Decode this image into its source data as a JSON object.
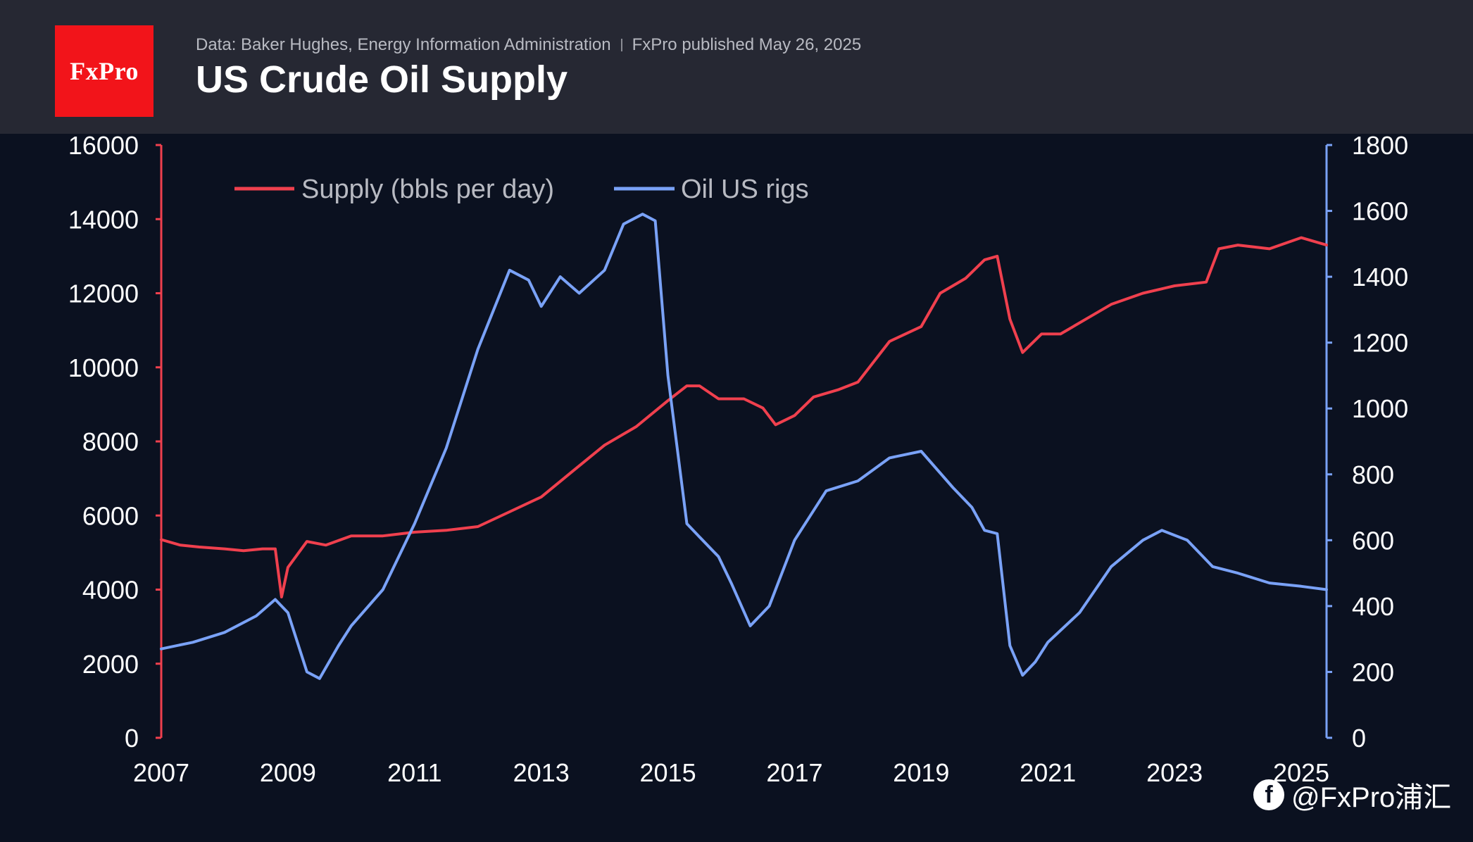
{
  "header": {
    "logo_text": "FxPro",
    "source": "Data: Baker Hughes, Energy Information Administration",
    "published": "FxPro published May 26, 2025",
    "title": "US Crude Oil Supply"
  },
  "watermark": {
    "icon": "facebook-icon",
    "text": "@FxPro浦汇"
  },
  "colors": {
    "supply": "#f0404e",
    "rigs": "#7aa2f7",
    "background": "#0b1120",
    "header": "#262833",
    "logo": "#f2141a"
  },
  "chart_data": {
    "type": "line",
    "title": "US Crude Oil Supply",
    "xlabel": "",
    "ylabel": "",
    "y2label": "",
    "grid": false,
    "legend_position": "top-left",
    "x_ticks": [
      "2007",
      "2009",
      "2011",
      "2013",
      "2015",
      "2017",
      "2019",
      "2021",
      "2023",
      "2025"
    ],
    "y_ticks": [
      "0",
      "2000",
      "4000",
      "6000",
      "8000",
      "10000",
      "12000",
      "14000",
      "16000"
    ],
    "y2_ticks": [
      "0",
      "200",
      "400",
      "600",
      "800",
      "1000",
      "1200",
      "1400",
      "1600",
      "1800"
    ],
    "ylim": [
      0,
      16000
    ],
    "y2lim": [
      0,
      1800
    ],
    "xlim": [
      2007,
      2025.4
    ],
    "series": [
      {
        "name": "Supply (bbls per day)",
        "axis": "left",
        "color": "#f0404e",
        "points": [
          [
            2007,
            5350
          ],
          [
            2007.3,
            5200
          ],
          [
            2007.6,
            5150
          ],
          [
            2008,
            5100
          ],
          [
            2008.3,
            5050
          ],
          [
            2008.6,
            5100
          ],
          [
            2008.8,
            5100
          ],
          [
            2008.9,
            3800
          ],
          [
            2009.0,
            4600
          ],
          [
            2009.3,
            5300
          ],
          [
            2009.6,
            5200
          ],
          [
            2010,
            5450
          ],
          [
            2010.5,
            5450
          ],
          [
            2011,
            5550
          ],
          [
            2011.5,
            5600
          ],
          [
            2012,
            5700
          ],
          [
            2012.5,
            6100
          ],
          [
            2013,
            6500
          ],
          [
            2013.5,
            7200
          ],
          [
            2014,
            7900
          ],
          [
            2014.5,
            8400
          ],
          [
            2015,
            9100
          ],
          [
            2015.3,
            9500
          ],
          [
            2015.5,
            9500
          ],
          [
            2015.8,
            9150
          ],
          [
            2016.2,
            9150
          ],
          [
            2016.5,
            8900
          ],
          [
            2016.7,
            8450
          ],
          [
            2017,
            8700
          ],
          [
            2017.3,
            9200
          ],
          [
            2017.7,
            9400
          ],
          [
            2018,
            9600
          ],
          [
            2018.5,
            10700
          ],
          [
            2019,
            11100
          ],
          [
            2019.3,
            12000
          ],
          [
            2019.7,
            12400
          ],
          [
            2020,
            12900
          ],
          [
            2020.2,
            13000
          ],
          [
            2020.4,
            11300
          ],
          [
            2020.6,
            10400
          ],
          [
            2020.9,
            10900
          ],
          [
            2021.2,
            10900
          ],
          [
            2021.6,
            11300
          ],
          [
            2022,
            11700
          ],
          [
            2022.5,
            12000
          ],
          [
            2023,
            12200
          ],
          [
            2023.5,
            12300
          ],
          [
            2023.7,
            13200
          ],
          [
            2024,
            13300
          ],
          [
            2024.5,
            13200
          ],
          [
            2025,
            13500
          ],
          [
            2025.2,
            13400
          ],
          [
            2025.4,
            13300
          ]
        ]
      },
      {
        "name": "Oil US rigs",
        "axis": "right",
        "color": "#7aa2f7",
        "points": [
          [
            2007,
            270
          ],
          [
            2007.5,
            290
          ],
          [
            2008,
            320
          ],
          [
            2008.5,
            370
          ],
          [
            2008.8,
            420
          ],
          [
            2009,
            380
          ],
          [
            2009.3,
            200
          ],
          [
            2009.5,
            180
          ],
          [
            2009.8,
            280
          ],
          [
            2010,
            340
          ],
          [
            2010.5,
            450
          ],
          [
            2011,
            650
          ],
          [
            2011.5,
            880
          ],
          [
            2012,
            1180
          ],
          [
            2012.5,
            1420
          ],
          [
            2012.8,
            1390
          ],
          [
            2013,
            1310
          ],
          [
            2013.3,
            1400
          ],
          [
            2013.6,
            1350
          ],
          [
            2014,
            1420
          ],
          [
            2014.3,
            1560
          ],
          [
            2014.6,
            1590
          ],
          [
            2014.8,
            1570
          ],
          [
            2015,
            1100
          ],
          [
            2015.3,
            650
          ],
          [
            2015.5,
            610
          ],
          [
            2015.8,
            550
          ],
          [
            2016,
            470
          ],
          [
            2016.3,
            340
          ],
          [
            2016.6,
            400
          ],
          [
            2017,
            600
          ],
          [
            2017.5,
            750
          ],
          [
            2018,
            780
          ],
          [
            2018.5,
            850
          ],
          [
            2019,
            870
          ],
          [
            2019.5,
            760
          ],
          [
            2019.8,
            700
          ],
          [
            2020,
            630
          ],
          [
            2020.2,
            620
          ],
          [
            2020.4,
            280
          ],
          [
            2020.6,
            190
          ],
          [
            2020.8,
            230
          ],
          [
            2021,
            290
          ],
          [
            2021.5,
            380
          ],
          [
            2022,
            520
          ],
          [
            2022.5,
            600
          ],
          [
            2022.8,
            630
          ],
          [
            2023.2,
            600
          ],
          [
            2023.6,
            520
          ],
          [
            2024,
            500
          ],
          [
            2024.5,
            470
          ],
          [
            2025,
            460
          ],
          [
            2025.4,
            450
          ]
        ]
      }
    ]
  }
}
